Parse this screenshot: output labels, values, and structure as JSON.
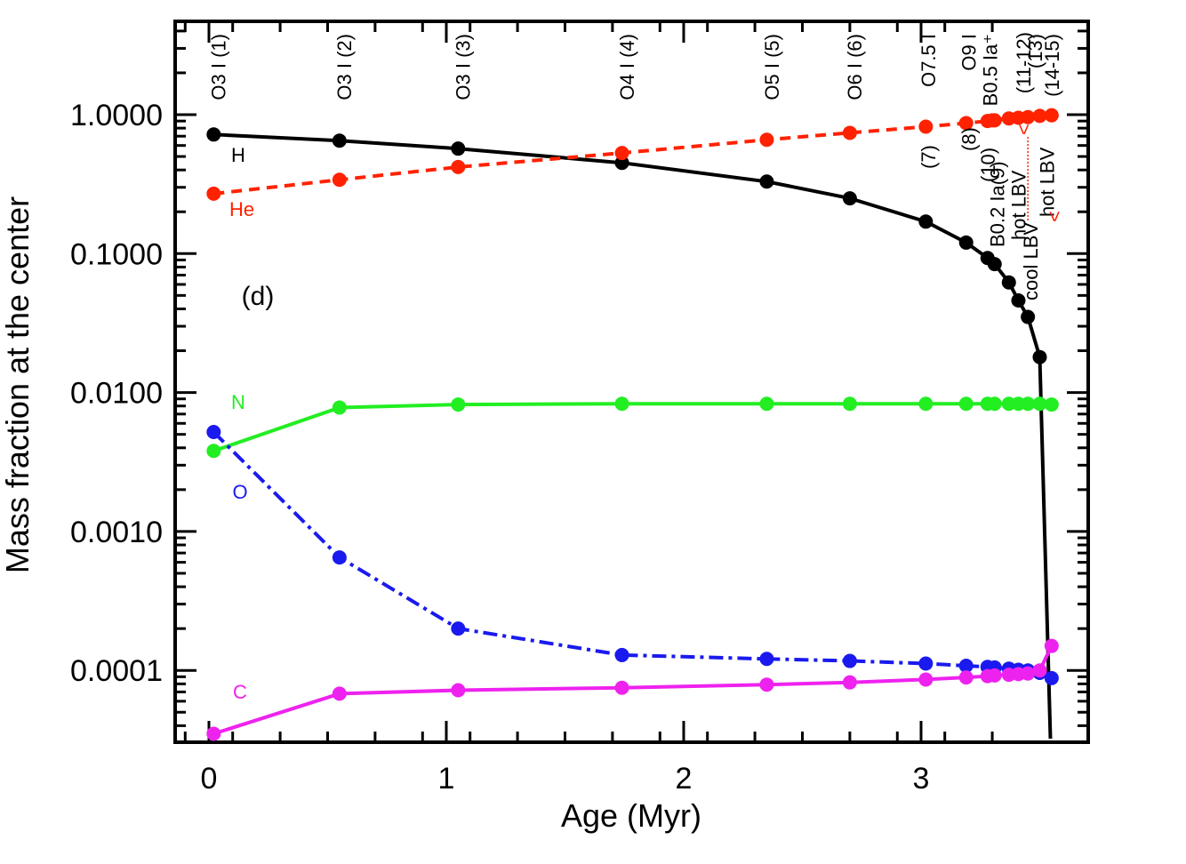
{
  "chart_data": {
    "type": "line",
    "panel_label": "(d)",
    "xlabel": "Age (Myr)",
    "ylabel": "Mass fraction at the center",
    "xlim": [
      -0.15,
      3.55
    ],
    "ylim": [
      3e-05,
      4.0
    ],
    "yscale": "log",
    "x_tick_labels": [
      "0",
      "1",
      "2",
      "3"
    ],
    "y_tick_labels": [
      "1.0000",
      "0.1000",
      "0.0100",
      "0.0010",
      "0.0001"
    ],
    "series": [
      {
        "name": "H",
        "color": "#000000",
        "style": "solid",
        "x": [
          0.02,
          0.55,
          1.05,
          1.74,
          2.35,
          2.7,
          3.02,
          3.19,
          3.28,
          3.31,
          3.37,
          3.41,
          3.45,
          3.5
        ],
        "values": [
          0.72,
          0.65,
          0.57,
          0.45,
          0.33,
          0.25,
          0.17,
          0.12,
          0.093,
          0.084,
          0.062,
          0.046,
          0.035,
          0.018
        ]
      },
      {
        "name": "He",
        "color": "#ff2200",
        "style": "dashed",
        "x": [
          0.02,
          0.55,
          1.05,
          1.74,
          2.35,
          2.7,
          3.02,
          3.19,
          3.28,
          3.3,
          3.31,
          3.37,
          3.41,
          3.45,
          3.5,
          3.55
        ],
        "values": [
          0.27,
          0.34,
          0.42,
          0.53,
          0.66,
          0.74,
          0.82,
          0.87,
          0.9,
          0.91,
          0.91,
          0.94,
          0.95,
          0.96,
          0.98,
          0.99
        ]
      },
      {
        "name": "N",
        "color": "#22ee22",
        "style": "solid",
        "x": [
          0.02,
          0.55,
          1.05,
          1.74,
          2.35,
          2.7,
          3.02,
          3.19,
          3.28,
          3.31,
          3.37,
          3.41,
          3.45,
          3.5,
          3.55
        ],
        "values": [
          0.0038,
          0.0078,
          0.0082,
          0.0083,
          0.0083,
          0.0083,
          0.0083,
          0.0083,
          0.0083,
          0.0083,
          0.0083,
          0.0083,
          0.0083,
          0.0083,
          0.0082
        ]
      },
      {
        "name": "O",
        "color": "#1a1aee",
        "style": "dashdot",
        "x": [
          0.02,
          0.55,
          1.05,
          1.74,
          2.35,
          2.7,
          3.02,
          3.19,
          3.28,
          3.31,
          3.37,
          3.41,
          3.45,
          3.5,
          3.55
        ],
        "values": [
          0.0052,
          0.00065,
          0.0002,
          0.000129,
          0.000121,
          0.000117,
          0.000112,
          0.000108,
          0.000106,
          0.000105,
          0.000103,
          0.000101,
          0.0001,
          9.6e-05,
          8.8e-05
        ]
      },
      {
        "name": "C",
        "color": "#ee22ee",
        "style": "solid",
        "x": [
          0.02,
          0.55,
          1.05,
          1.74,
          2.35,
          2.7,
          3.02,
          3.19,
          3.28,
          3.31,
          3.37,
          3.41,
          3.45,
          3.5,
          3.55
        ],
        "values": [
          3.5e-05,
          6.8e-05,
          7.2e-05,
          7.5e-05,
          7.9e-05,
          8.2e-05,
          8.6e-05,
          8.9e-05,
          9.1e-05,
          9.2e-05,
          9.3e-05,
          9.4e-05,
          9.5e-05,
          0.0001,
          0.00015
        ]
      }
    ],
    "top_annotations": [
      {
        "text": "O3 I (1)",
        "x": 0.04
      },
      {
        "text": "O3 I  (2)",
        "x": 0.57
      },
      {
        "text": "O3 I  (3)",
        "x": 1.07
      },
      {
        "text": "O4 I  (4)",
        "x": 1.76
      },
      {
        "text": "O5 I  (5)",
        "x": 2.37
      },
      {
        "text": "O6 I (6)",
        "x": 2.72
      },
      {
        "text": "O7.5 I",
        "x": 3.03
      },
      {
        "text": "(7)",
        "x": 3.03
      },
      {
        "text": "O9 I",
        "x": 3.2
      },
      {
        "text": "(8)",
        "x": 3.2
      },
      {
        "text": "B0.5 Ia⁺",
        "x": 3.29
      },
      {
        "text": "(10)",
        "x": 3.28
      },
      {
        "text": "B0.2 Ia(9)",
        "x": 3.32
      },
      {
        "text": "(11-12)",
        "x": 3.43
      },
      {
        "text": "hot LBV",
        "x": 3.41
      },
      {
        "text": "<",
        "x": 3.43
      },
      {
        "text": "(13)",
        "x": 3.48
      },
      {
        "text": "cool LBV",
        "x": 3.46
      },
      {
        "text": "(14-15)",
        "x": 3.55
      },
      {
        "text": "hot LBV",
        "x": 3.53
      },
      {
        "text": "<",
        "x": 3.56
      }
    ]
  }
}
